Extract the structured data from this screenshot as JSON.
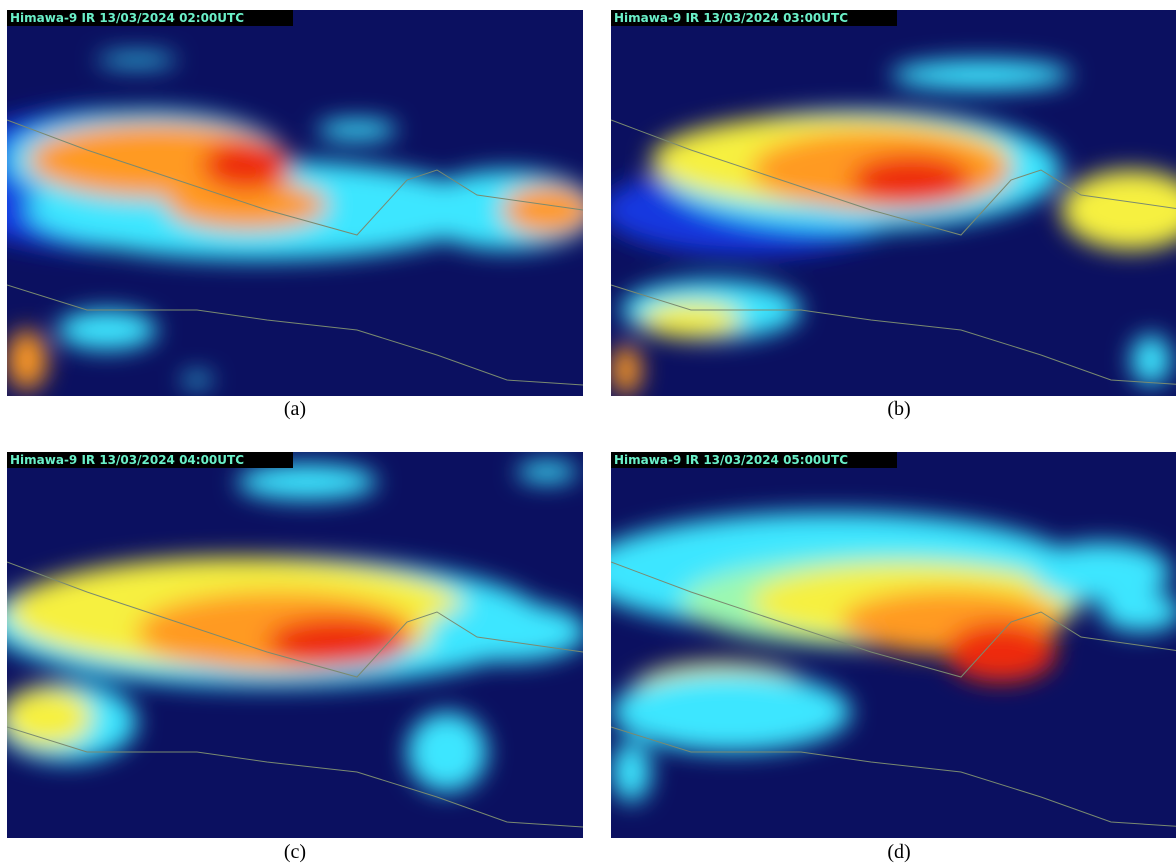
{
  "panels": [
    {
      "label": "Himawa-9 IR 13/03/2024 02:00UTC",
      "caption": "(a)"
    },
    {
      "label": "Himawa-9 IR 13/03/2024 03:00UTC",
      "caption": "(b)"
    },
    {
      "label": "Himawa-9 IR 13/03/2024 04:00UTC",
      "caption": "(c)"
    },
    {
      "label": "Himawa-9 IR 13/03/2024 05:00UTC",
      "caption": "(d)"
    }
  ]
}
